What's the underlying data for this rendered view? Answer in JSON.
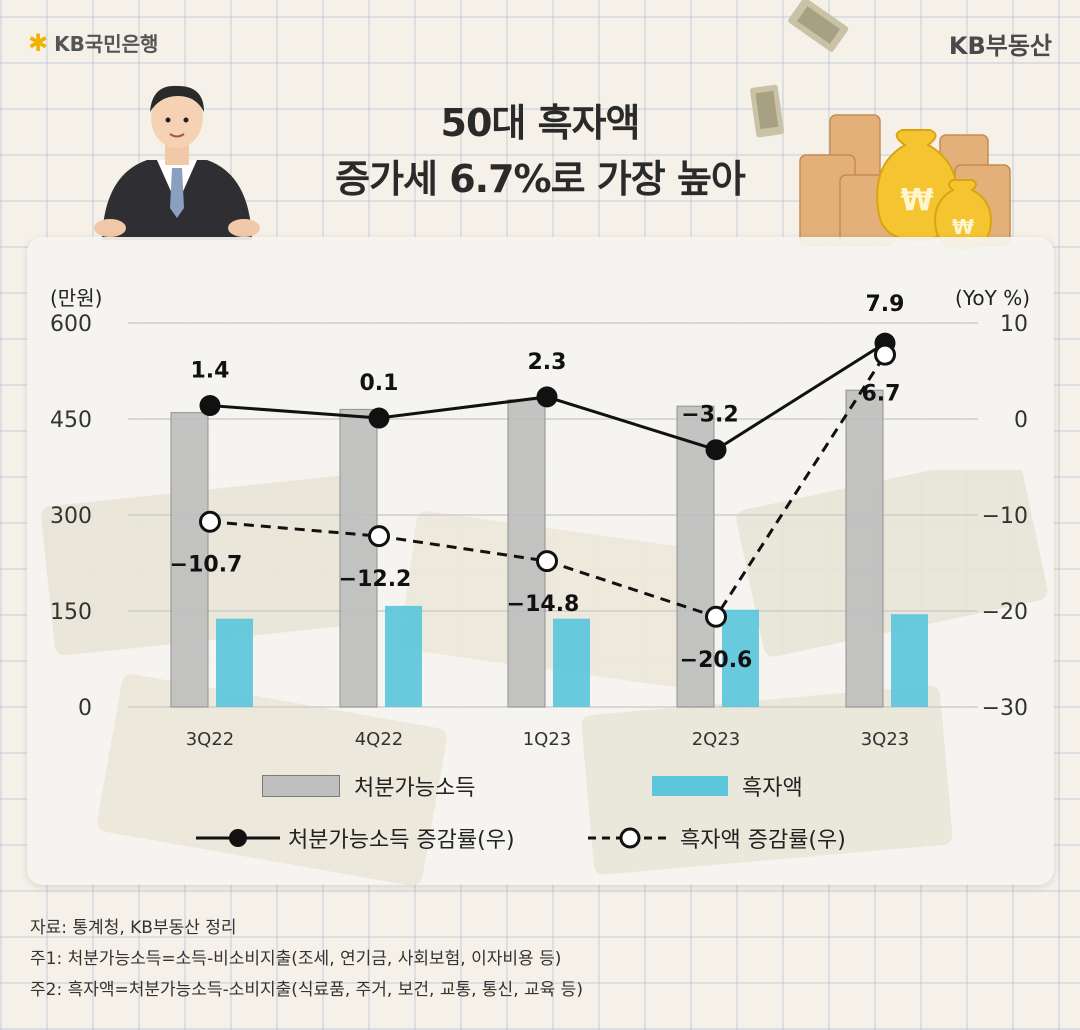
{
  "header": {
    "bank_logo": "KB국민은행",
    "brand_logo": "KB부동산",
    "title_line1": "50대 흑자액",
    "title_line2": "증가세 6.7%로 가장 높아"
  },
  "chart_data": {
    "type": "bar",
    "categories": [
      "3Q22",
      "4Q22",
      "1Q23",
      "2Q23",
      "3Q23"
    ],
    "y_left_label": "(만원)",
    "y_left_range": [
      0,
      600
    ],
    "y_left_ticks": [
      "0",
      "150",
      "300",
      "450",
      "600"
    ],
    "y_right_label": "(YoY %)",
    "y_right_range": [
      -30,
      10
    ],
    "y_right_ticks": [
      "-30",
      "-20",
      "-10",
      "0",
      "10"
    ],
    "series": [
      {
        "name": "처분가능소득",
        "kind": "bar",
        "axis": "left",
        "values": [
          460,
          465,
          480,
          470,
          495
        ],
        "color": "#bfbfbf"
      },
      {
        "name": "흑자액",
        "kind": "bar",
        "axis": "left",
        "values": [
          138,
          158,
          138,
          152,
          145
        ],
        "color": "#5cc6dc"
      },
      {
        "name": "처분가능소득 증감률(우)",
        "kind": "line",
        "axis": "right",
        "style": "solid",
        "values": [
          1.4,
          0.1,
          2.3,
          -3.2,
          7.9
        ],
        "labels": [
          "1.4",
          "0.1",
          "2.3",
          "-3.2",
          "7.9"
        ]
      },
      {
        "name": "흑자액 증감률(우)",
        "kind": "line",
        "axis": "right",
        "style": "dashed",
        "values": [
          -10.7,
          -12.2,
          -14.8,
          -20.6,
          6.7
        ],
        "labels": [
          "-10.7",
          "-12.2",
          "-14.8",
          "-20.6",
          "6.7"
        ]
      }
    ],
    "grid": true,
    "legend_position": "bottom"
  },
  "legend": {
    "income_bar": "처분가능소득",
    "surplus_bar": "흑자액",
    "income_line": "처분가능소득 증감률(우)",
    "surplus_line": "흑자액 증감률(우)"
  },
  "footnotes": {
    "source": "자료: 통계청, KB부동산 정리",
    "note1": "주1: 처분가능소득=소득-비소비지출(조세, 연기금, 사회보험, 이자비용 등)",
    "note2": "주2: 흑자액=처분가능소득-소비지출(식료품, 주거, 보건, 교통, 통신, 교육 등)"
  }
}
